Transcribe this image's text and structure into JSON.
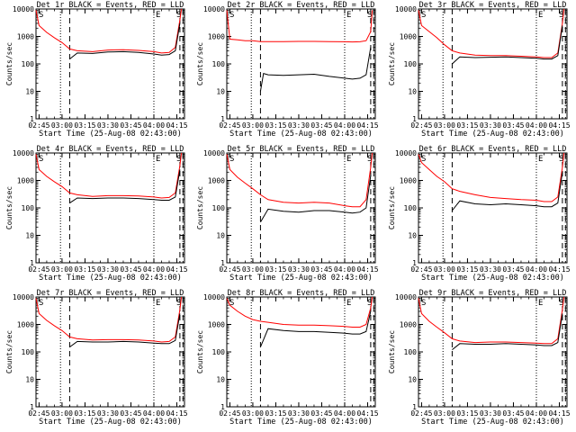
{
  "chart_data": [
    {
      "type": "line",
      "title": "Det 1r BLACK = Events, RED = LLD",
      "xlabel": "Start Time (25-Aug-08 02:43:00)",
      "ylabel": "Counts/sec",
      "y_scale": "log",
      "ylim": [
        1,
        10000
      ],
      "xlim": [
        "02:43",
        "04:20"
      ],
      "x_ticks": [
        "02:45",
        "03:00",
        "03:15",
        "03:30",
        "03:45",
        "04:00",
        "04:15"
      ],
      "y_ticks": [
        "1",
        "10",
        "100",
        "1000",
        "10000"
      ],
      "grid": false,
      "markers": {
        "dotted": [
          "02:59",
          "04:00",
          "04:20"
        ],
        "dashed": [
          "03:05",
          "04:17",
          "04:19"
        ],
        "letters": [
          "S",
          "E",
          "S"
        ]
      },
      "series": [
        {
          "color": "#000000",
          "x": [
            "03:05",
            "03:10",
            "03:20",
            "03:30",
            "03:40",
            "03:50",
            "04:00",
            "04:05",
            "04:10",
            "04:14",
            "04:17"
          ],
          "values": [
            150,
            250,
            240,
            270,
            280,
            260,
            230,
            210,
            220,
            300,
            3000
          ]
        },
        {
          "color": "#ff0000",
          "x": [
            "02:43",
            "02:45",
            "02:50",
            "02:55",
            "03:00",
            "03:05",
            "03:10",
            "03:20",
            "03:30",
            "03:40",
            "03:50",
            "04:00",
            "04:05",
            "04:10",
            "04:14",
            "04:17",
            "04:18"
          ],
          "values": [
            9000,
            2500,
            1400,
            900,
            600,
            350,
            300,
            280,
            320,
            330,
            310,
            280,
            250,
            260,
            400,
            4000,
            10000
          ]
        }
      ]
    },
    {
      "type": "line",
      "title": "Det 2r BLACK = Events, RED = LLD",
      "xlabel": "Start Time (25-Aug-08 02:43:00)",
      "ylabel": "Counts/sec",
      "y_scale": "log",
      "ylim": [
        1,
        10000
      ],
      "xlim": [
        "02:43",
        "04:20"
      ],
      "x_ticks": [
        "02:45",
        "03:00",
        "03:15",
        "03:30",
        "03:45",
        "04:00",
        "04:15"
      ],
      "y_ticks": [
        "1",
        "10",
        "100",
        "1000",
        "10000"
      ],
      "grid": false,
      "markers": {
        "dotted": [
          "02:59",
          "04:00",
          "04:20"
        ],
        "dashed": [
          "03:05",
          "04:17",
          "04:19"
        ],
        "letters": [
          "S",
          "E",
          "S"
        ]
      },
      "series": [
        {
          "color": "#000000",
          "x": [
            "03:05",
            "03:07",
            "03:10",
            "03:20",
            "03:30",
            "03:40",
            "03:50",
            "04:00",
            "04:05",
            "04:10",
            "04:14",
            "04:17"
          ],
          "values": [
            10,
            45,
            40,
            38,
            40,
            42,
            35,
            30,
            28,
            30,
            40,
            400
          ]
        },
        {
          "color": "#ff0000",
          "x": [
            "02:43",
            "02:45",
            "02:50",
            "02:55",
            "03:00",
            "03:05",
            "03:10",
            "03:20",
            "03:30",
            "03:40",
            "03:50",
            "04:00",
            "04:05",
            "04:10",
            "04:14",
            "04:17",
            "04:18"
          ],
          "values": [
            9000,
            800,
            750,
            700,
            700,
            650,
            650,
            650,
            660,
            660,
            650,
            640,
            630,
            640,
            700,
            1500,
            9000
          ]
        }
      ]
    },
    {
      "type": "line",
      "title": "Det 3r BLACK = Events, RED = LLD",
      "xlabel": "Start Time (25-Aug-08 02:43:00)",
      "ylabel": "Counts/sec",
      "y_scale": "log",
      "ylim": [
        1,
        10000
      ],
      "xlim": [
        "02:43",
        "04:20"
      ],
      "x_ticks": [
        "02:45",
        "03:00",
        "03:15",
        "03:30",
        "03:45",
        "04:00",
        "04:15"
      ],
      "y_ticks": [
        "1",
        "10",
        "100",
        "1000",
        "10000"
      ],
      "grid": false,
      "markers": {
        "dotted": [
          "02:59",
          "04:00",
          "04:20"
        ],
        "dashed": [
          "03:05",
          "04:17",
          "04:19"
        ],
        "letters": [
          "S",
          "E",
          "S"
        ]
      },
      "series": [
        {
          "color": "#000000",
          "x": [
            "03:05",
            "03:10",
            "03:20",
            "03:30",
            "03:40",
            "03:50",
            "04:00",
            "04:05",
            "04:10",
            "04:14",
            "04:17"
          ],
          "values": [
            100,
            180,
            170,
            175,
            180,
            170,
            160,
            150,
            150,
            200,
            2500
          ]
        },
        {
          "color": "#ff0000",
          "x": [
            "02:43",
            "02:45",
            "02:50",
            "02:55",
            "03:00",
            "03:05",
            "03:10",
            "03:20",
            "03:30",
            "03:40",
            "03:50",
            "04:00",
            "04:05",
            "04:10",
            "04:14",
            "04:17",
            "04:18"
          ],
          "values": [
            9000,
            2500,
            1500,
            900,
            500,
            300,
            250,
            210,
            200,
            200,
            190,
            180,
            170,
            170,
            250,
            3000,
            10000
          ]
        }
      ]
    },
    {
      "type": "line",
      "title": "Det 4r BLACK = Events, RED = LLD",
      "xlabel": "Start Time (25-Aug-08 02:43:00)",
      "ylabel": "Counts/sec",
      "y_scale": "log",
      "ylim": [
        1,
        10000
      ],
      "xlim": [
        "02:43",
        "04:20"
      ],
      "x_ticks": [
        "02:45",
        "03:00",
        "03:15",
        "03:30",
        "03:45",
        "04:00",
        "04:15"
      ],
      "y_ticks": [
        "1",
        "10",
        "100",
        "1000",
        "10000"
      ],
      "grid": false,
      "markers": {
        "dotted": [
          "02:59",
          "04:00",
          "04:20"
        ],
        "dashed": [
          "03:05",
          "04:17",
          "04:19"
        ],
        "letters": [
          "S",
          "E",
          "S"
        ]
      },
      "series": [
        {
          "color": "#000000",
          "x": [
            "03:05",
            "03:10",
            "03:20",
            "03:30",
            "03:40",
            "03:50",
            "04:00",
            "04:05",
            "04:10",
            "04:14",
            "04:17"
          ],
          "values": [
            150,
            230,
            220,
            230,
            230,
            220,
            200,
            190,
            190,
            250,
            2500
          ]
        },
        {
          "color": "#ff0000",
          "x": [
            "02:43",
            "02:45",
            "02:50",
            "02:55",
            "03:00",
            "03:05",
            "03:10",
            "03:20",
            "03:30",
            "03:40",
            "03:50",
            "04:00",
            "04:05",
            "04:10",
            "04:14",
            "04:17",
            "04:18"
          ],
          "values": [
            9000,
            2500,
            1400,
            900,
            600,
            350,
            300,
            260,
            280,
            280,
            270,
            250,
            230,
            240,
            350,
            3500,
            10000
          ]
        }
      ]
    },
    {
      "type": "line",
      "title": "Det 5r BLACK = Events, RED = LLD",
      "xlabel": "Start Time (25-Aug-08 02:43:00)",
      "ylabel": "Counts/sec",
      "y_scale": "log",
      "ylim": [
        1,
        10000
      ],
      "xlim": [
        "02:43",
        "04:20"
      ],
      "x_ticks": [
        "02:45",
        "03:00",
        "03:15",
        "03:30",
        "03:45",
        "04:00",
        "04:15"
      ],
      "y_ticks": [
        "1",
        "10",
        "100",
        "1000",
        "10000"
      ],
      "grid": false,
      "markers": {
        "dotted": [
          "02:59",
          "04:00",
          "04:20"
        ],
        "dashed": [
          "03:05",
          "04:17",
          "04:19"
        ],
        "letters": [
          "S",
          "E",
          "S"
        ]
      },
      "series": [
        {
          "color": "#000000",
          "x": [
            "03:05",
            "03:10",
            "03:20",
            "03:30",
            "03:40",
            "03:50",
            "04:00",
            "04:05",
            "04:10",
            "04:14",
            "04:17"
          ],
          "values": [
            30,
            90,
            75,
            70,
            80,
            80,
            70,
            65,
            70,
            100,
            1500
          ]
        },
        {
          "color": "#ff0000",
          "x": [
            "02:43",
            "02:45",
            "02:50",
            "02:55",
            "03:00",
            "03:05",
            "03:10",
            "03:20",
            "03:30",
            "03:40",
            "03:50",
            "04:00",
            "04:05",
            "04:10",
            "04:14",
            "04:17",
            "04:18"
          ],
          "values": [
            9000,
            2500,
            1300,
            800,
            500,
            300,
            200,
            160,
            150,
            160,
            150,
            120,
            110,
            110,
            200,
            3000,
            10000
          ]
        }
      ]
    },
    {
      "type": "line",
      "title": "Det 6r BLACK = Events, RED = LLD",
      "xlabel": "Start Time (25-Aug-08 02:43:00)",
      "ylabel": "Counts/sec",
      "y_scale": "log",
      "ylim": [
        1,
        10000
      ],
      "xlim": [
        "02:43",
        "04:20"
      ],
      "x_ticks": [
        "02:45",
        "03:00",
        "03:15",
        "03:30",
        "03:45",
        "04:00",
        "04:15"
      ],
      "y_ticks": [
        "1",
        "10",
        "100",
        "1000",
        "10000"
      ],
      "grid": false,
      "markers": {
        "dotted": [
          "02:59",
          "04:00",
          "04:20"
        ],
        "dashed": [
          "03:05",
          "04:17",
          "04:19"
        ],
        "letters": [
          "S",
          "E",
          "S"
        ]
      },
      "series": [
        {
          "color": "#000000",
          "x": [
            "03:05",
            "03:10",
            "03:20",
            "03:30",
            "03:40",
            "03:50",
            "04:00",
            "04:05",
            "04:10",
            "04:14",
            "04:17"
          ],
          "values": [
            80,
            180,
            140,
            130,
            140,
            130,
            120,
            110,
            110,
            150,
            2000
          ]
        },
        {
          "color": "#ff0000",
          "x": [
            "02:43",
            "02:45",
            "02:50",
            "02:55",
            "03:00",
            "03:05",
            "03:10",
            "03:20",
            "03:30",
            "03:40",
            "03:50",
            "04:00",
            "04:05",
            "04:10",
            "04:14",
            "04:17",
            "04:18"
          ],
          "values": [
            9000,
            4500,
            2500,
            1400,
            900,
            500,
            400,
            300,
            240,
            220,
            200,
            190,
            170,
            170,
            250,
            3000,
            10000
          ]
        }
      ]
    },
    {
      "type": "line",
      "title": "Det 7r BLACK = Events, RED = LLD",
      "xlabel": "Start Time (25-Aug-08 02:43:00)",
      "ylabel": "Counts/sec",
      "y_scale": "log",
      "ylim": [
        1,
        10000
      ],
      "xlim": [
        "02:43",
        "04:20"
      ],
      "x_ticks": [
        "02:45",
        "03:00",
        "03:15",
        "03:30",
        "03:45",
        "04:00",
        "04:15"
      ],
      "y_ticks": [
        "1",
        "10",
        "100",
        "1000",
        "10000"
      ],
      "grid": false,
      "markers": {
        "dotted": [
          "02:59",
          "04:00",
          "04:20"
        ],
        "dashed": [
          "03:05",
          "04:17",
          "04:19"
        ],
        "letters": [
          "S",
          "E",
          "S"
        ]
      },
      "series": [
        {
          "color": "#000000",
          "x": [
            "03:05",
            "03:10",
            "03:20",
            "03:30",
            "03:40",
            "03:50",
            "04:00",
            "04:05",
            "04:10",
            "04:14",
            "04:17"
          ],
          "values": [
            150,
            240,
            230,
            230,
            240,
            230,
            210,
            200,
            200,
            260,
            2500
          ]
        },
        {
          "color": "#ff0000",
          "x": [
            "02:43",
            "02:45",
            "02:50",
            "02:55",
            "03:00",
            "03:05",
            "03:10",
            "03:20",
            "03:30",
            "03:40",
            "03:50",
            "04:00",
            "04:05",
            "04:10",
            "04:14",
            "04:17",
            "04:18"
          ],
          "values": [
            9000,
            2500,
            1400,
            900,
            600,
            350,
            300,
            270,
            280,
            280,
            270,
            250,
            230,
            240,
            350,
            3500,
            10000
          ]
        }
      ]
    },
    {
      "type": "line",
      "title": "Det 8r BLACK = Events, RED = LLD",
      "xlabel": "Start Time (25-Aug-08 02:43:00)",
      "ylabel": "Counts/sec",
      "y_scale": "log",
      "ylim": [
        1,
        10000
      ],
      "xlim": [
        "02:43",
        "04:20"
      ],
      "x_ticks": [
        "02:45",
        "03:00",
        "03:15",
        "03:30",
        "03:45",
        "04:00",
        "04:15"
      ],
      "y_ticks": [
        "1",
        "10",
        "100",
        "1000",
        "10000"
      ],
      "grid": false,
      "markers": {
        "dotted": [
          "02:59",
          "04:00",
          "04:20"
        ],
        "dashed": [
          "03:05",
          "04:17",
          "04:19"
        ],
        "letters": [
          "S",
          "E",
          "S"
        ]
      },
      "series": [
        {
          "color": "#000000",
          "x": [
            "03:05",
            "03:10",
            "03:20",
            "03:30",
            "03:40",
            "03:50",
            "04:00",
            "04:05",
            "04:10",
            "04:14",
            "04:17"
          ],
          "values": [
            150,
            700,
            600,
            550,
            550,
            520,
            480,
            450,
            450,
            550,
            3000
          ]
        },
        {
          "color": "#ff0000",
          "x": [
            "02:43",
            "02:45",
            "02:50",
            "02:55",
            "03:00",
            "03:05",
            "03:10",
            "03:20",
            "03:30",
            "03:40",
            "03:50",
            "04:00",
            "04:05",
            "04:10",
            "04:14",
            "04:17",
            "04:18"
          ],
          "values": [
            9000,
            5000,
            3000,
            2000,
            1500,
            1300,
            1200,
            1000,
            950,
            950,
            900,
            850,
            800,
            800,
            1000,
            4000,
            10000
          ]
        }
      ]
    },
    {
      "type": "line",
      "title": "Det 9r BLACK = Events, RED = LLD",
      "xlabel": "Start Time (25-Aug-08 02:43:00)",
      "ylabel": "Counts/sec",
      "y_scale": "log",
      "ylim": [
        1,
        10000
      ],
      "xlim": [
        "02:43",
        "04:20"
      ],
      "x_ticks": [
        "02:45",
        "03:00",
        "03:15",
        "03:30",
        "03:45",
        "04:00",
        "04:15"
      ],
      "y_ticks": [
        "1",
        "10",
        "100",
        "1000",
        "10000"
      ],
      "grid": false,
      "markers": {
        "dotted": [
          "02:59",
          "04:00",
          "04:20"
        ],
        "dashed": [
          "03:05",
          "04:17",
          "04:19"
        ],
        "letters": [
          "S",
          "E",
          "S"
        ]
      },
      "series": [
        {
          "color": "#000000",
          "x": [
            "03:05",
            "03:10",
            "03:20",
            "03:30",
            "03:40",
            "03:50",
            "04:00",
            "04:05",
            "04:10",
            "04:14",
            "04:17"
          ],
          "values": [
            120,
            200,
            190,
            190,
            200,
            190,
            180,
            170,
            170,
            220,
            2500
          ]
        },
        {
          "color": "#ff0000",
          "x": [
            "02:43",
            "02:45",
            "02:50",
            "02:55",
            "03:00",
            "03:05",
            "03:10",
            "03:20",
            "03:30",
            "03:40",
            "03:50",
            "04:00",
            "04:05",
            "04:10",
            "04:14",
            "04:17",
            "04:18"
          ],
          "values": [
            9000,
            2500,
            1300,
            800,
            500,
            300,
            250,
            220,
            230,
            230,
            220,
            210,
            200,
            200,
            300,
            3500,
            10000
          ]
        }
      ]
    }
  ]
}
